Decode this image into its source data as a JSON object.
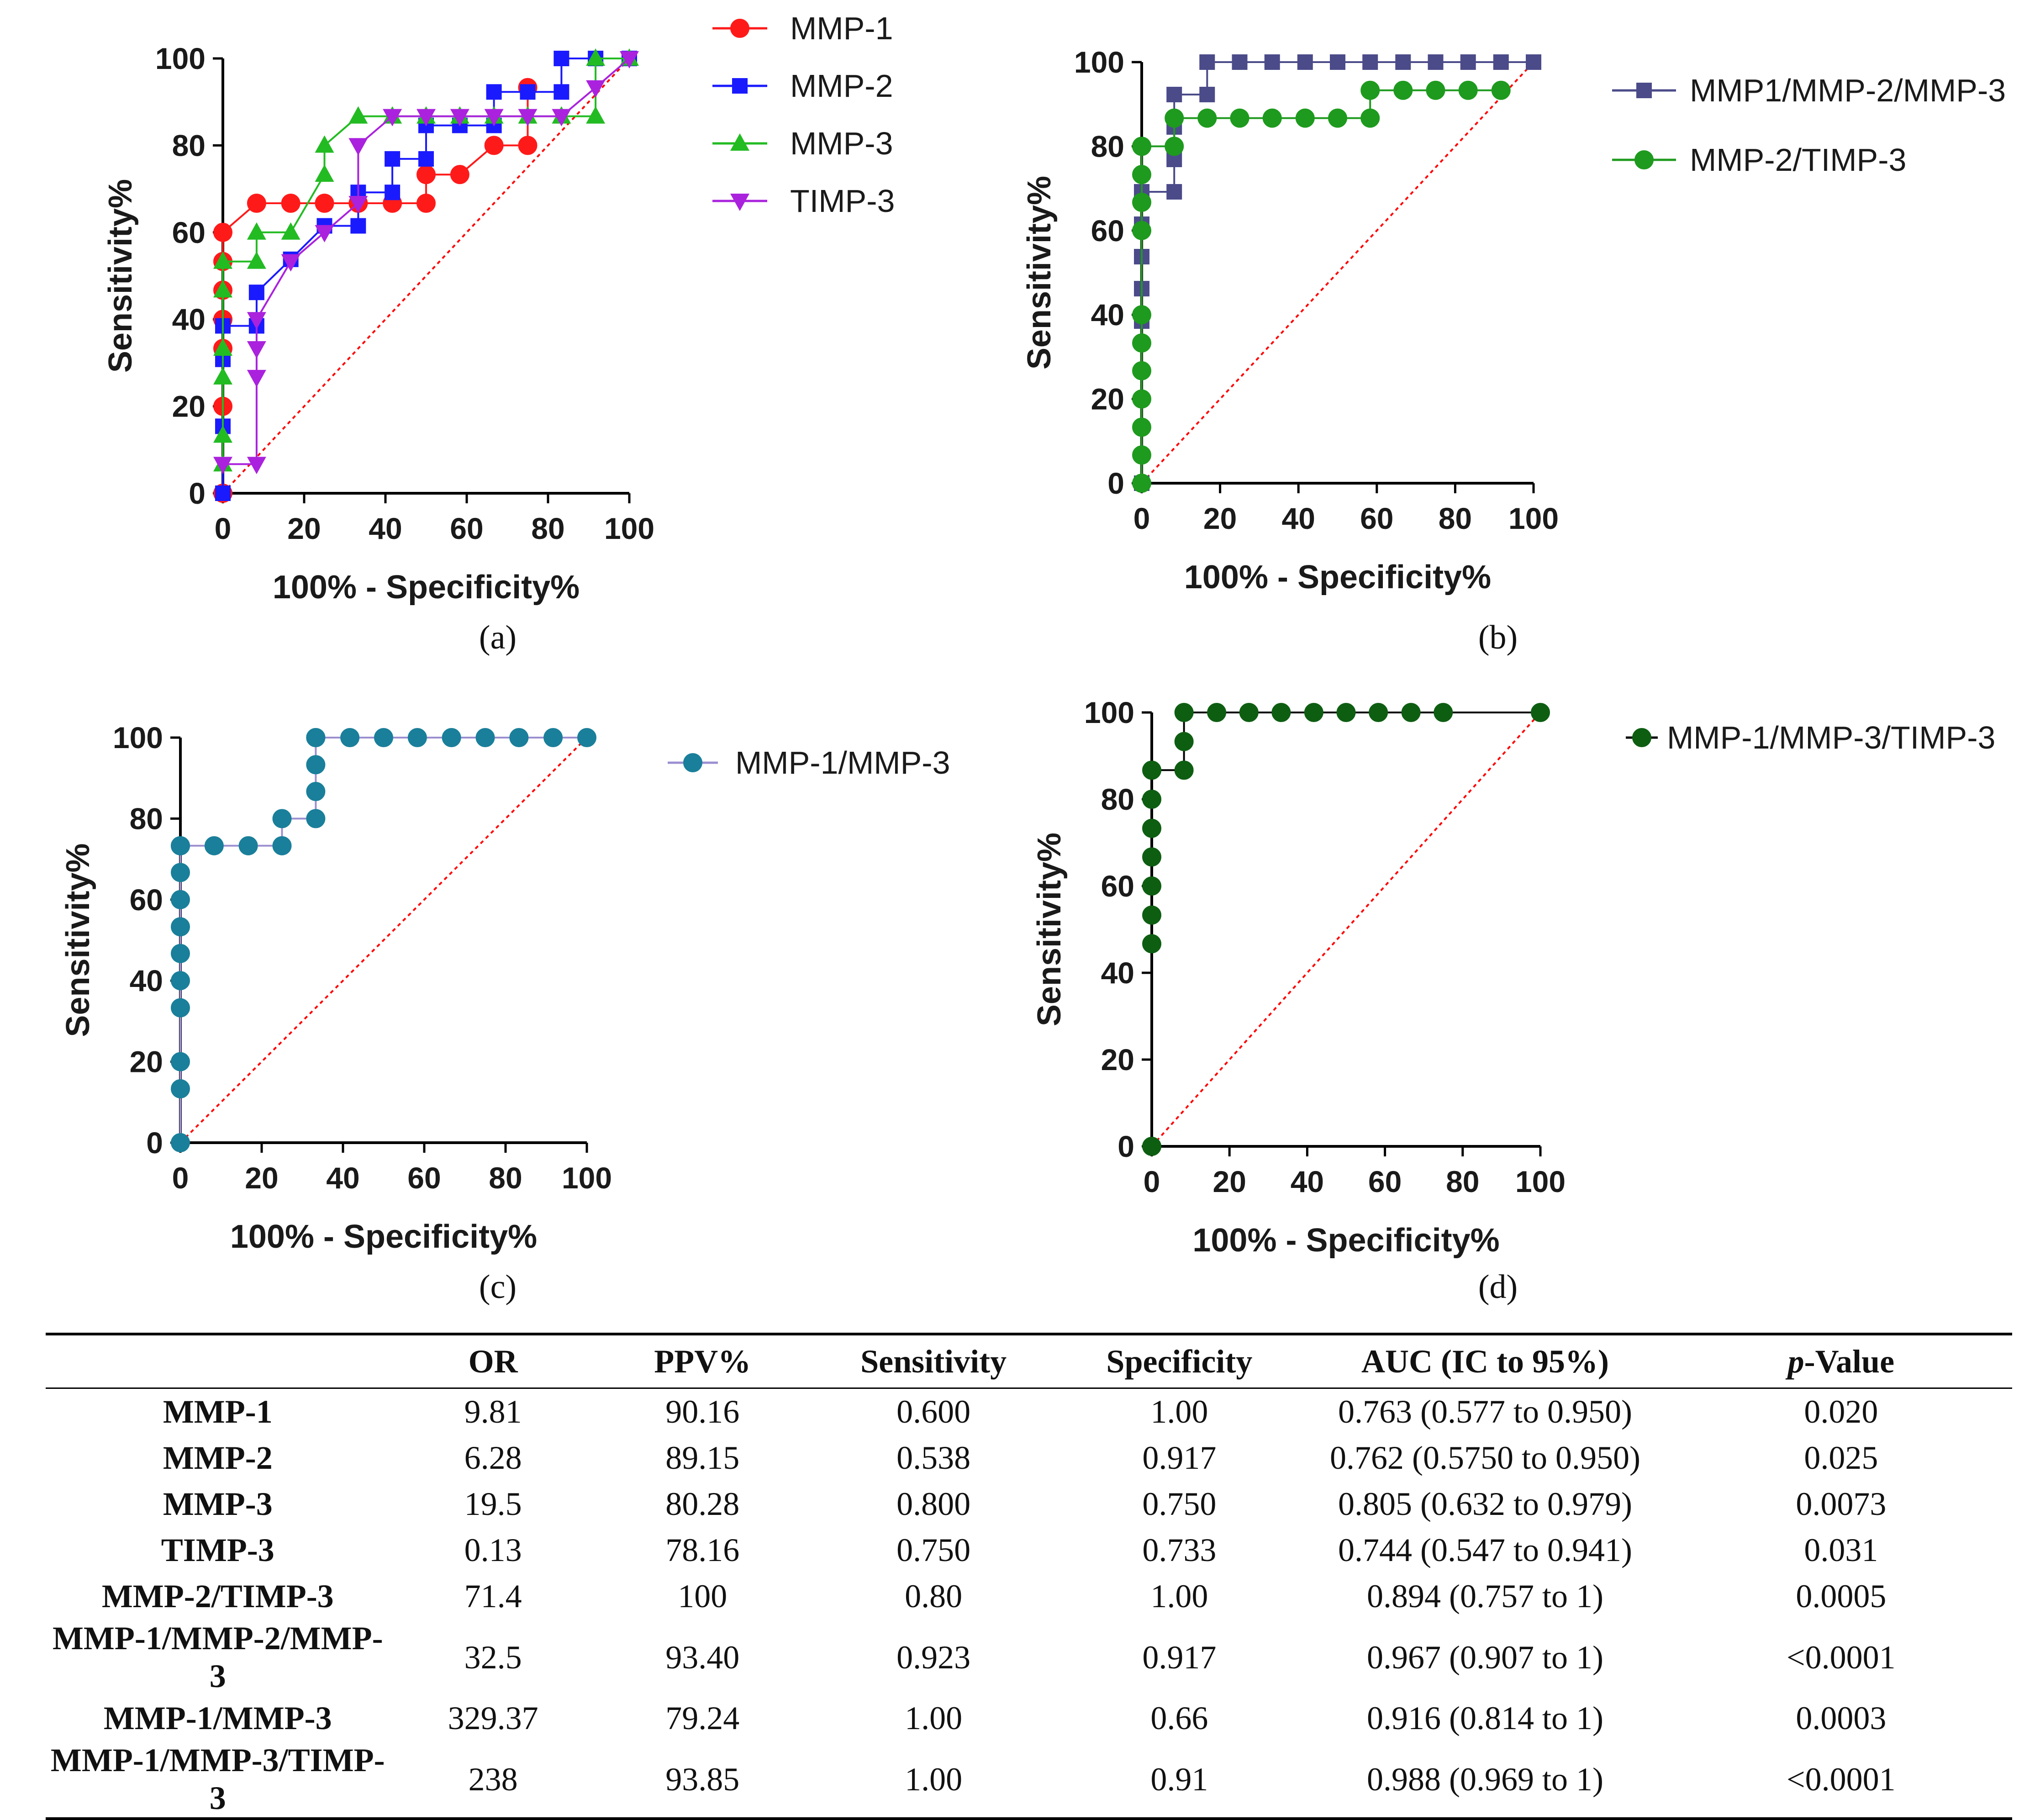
{
  "chart_data": [
    {
      "panel": "a",
      "panel_label": "(a)",
      "type": "line",
      "title": "",
      "xlabel": "100% - Specificity%",
      "ylabel": "Sensitivity%",
      "xlim": [
        0,
        100
      ],
      "ylim": [
        0,
        100
      ],
      "xticks": [
        0,
        20,
        40,
        60,
        80,
        100
      ],
      "yticks": [
        0,
        20,
        40,
        60,
        80,
        100
      ],
      "reference_line": {
        "x": [
          0,
          100
        ],
        "y": [
          0,
          100
        ],
        "color": "#ff0000",
        "style": "dotted"
      },
      "legend_position": "right",
      "series": [
        {
          "name": "MMP-1",
          "color": "#ff1a1a",
          "marker": "circle",
          "x": [
            0,
            0,
            0,
            0,
            0,
            0,
            0,
            8.3,
            16.7,
            25,
            33.3,
            41.7,
            50,
            50,
            58.3,
            66.7,
            75,
            75
          ],
          "y": [
            0,
            20,
            33.3,
            40,
            46.7,
            53.3,
            60,
            66.7,
            66.7,
            66.7,
            66.7,
            66.7,
            66.7,
            73.3,
            73.3,
            80,
            80,
            93.3
          ]
        },
        {
          "name": "MMP-2",
          "color": "#1a1aff",
          "marker": "square",
          "x": [
            0,
            0,
            0,
            0,
            8.3,
            8.3,
            16.7,
            25,
            33.3,
            33.3,
            41.7,
            41.7,
            50,
            50,
            58.3,
            66.7,
            66.7,
            75,
            83.3,
            83.3,
            91.7,
            100
          ],
          "y": [
            0,
            15.4,
            30.8,
            38.5,
            38.5,
            46.2,
            53.8,
            61.5,
            61.5,
            69.2,
            69.2,
            76.9,
            76.9,
            84.6,
            84.6,
            84.6,
            92.3,
            92.3,
            92.3,
            100,
            100,
            100
          ]
        },
        {
          "name": "MMP-3",
          "color": "#22bb22",
          "marker": "triangle-up",
          "x": [
            0,
            0,
            0,
            0,
            0,
            0,
            8.3,
            8.3,
            16.7,
            25,
            25,
            33.3,
            41.7,
            50,
            58.3,
            66.7,
            75,
            83.3,
            91.7,
            91.7,
            100
          ],
          "y": [
            6.7,
            13.3,
            26.7,
            33.3,
            46.7,
            53.3,
            53.3,
            60,
            60,
            73.3,
            80,
            86.7,
            86.7,
            86.7,
            86.7,
            86.7,
            86.7,
            86.7,
            86.7,
            100,
            100
          ]
        },
        {
          "name": "TIMP-3",
          "color": "#aa22dd",
          "marker": "triangle-down",
          "x": [
            0,
            8.3,
            8.3,
            8.3,
            8.3,
            16.7,
            25,
            33.3,
            33.3,
            41.7,
            50,
            58.3,
            66.7,
            75,
            83.3,
            91.7,
            100
          ],
          "y": [
            6.7,
            6.7,
            26.7,
            33.3,
            40,
            53.3,
            60,
            66.7,
            80,
            86.7,
            86.7,
            86.7,
            86.7,
            86.7,
            86.7,
            93.3,
            100
          ]
        }
      ]
    },
    {
      "panel": "b",
      "panel_label": "(b)",
      "type": "line",
      "title": "",
      "xlabel": "100% - Specificity%",
      "ylabel": "Sensitivity%",
      "xlim": [
        0,
        100
      ],
      "ylim": [
        0,
        100
      ],
      "xticks": [
        0,
        20,
        40,
        60,
        80,
        100
      ],
      "yticks": [
        0,
        20,
        40,
        60,
        80,
        100
      ],
      "reference_line": {
        "x": [
          0,
          100
        ],
        "y": [
          0,
          100
        ],
        "color": "#ff0000",
        "style": "dotted"
      },
      "legend_position": "right",
      "series": [
        {
          "name": "MMP1/MMP-2/MMP-3",
          "color": "#4b4b8a",
          "marker": "square",
          "x": [
            0,
            0,
            0,
            0,
            0,
            0,
            8.3,
            8.3,
            8.3,
            8.3,
            16.7,
            16.7,
            25,
            33.3,
            41.7,
            50,
            58.3,
            66.7,
            75,
            83.3,
            91.7,
            100
          ],
          "y": [
            0,
            38.5,
            46.2,
            53.8,
            61.5,
            69.2,
            69.2,
            76.9,
            84.6,
            92.3,
            92.3,
            100,
            100,
            100,
            100,
            100,
            100,
            100,
            100,
            100,
            100,
            100
          ]
        },
        {
          "name": "MMP-2/TIMP-3",
          "color": "#1e9a1e",
          "marker": "circle",
          "x": [
            0,
            0,
            0,
            0,
            0,
            0,
            0,
            0,
            0,
            0,
            0,
            0,
            8.3,
            8.3,
            16.7,
            25,
            33.3,
            41.7,
            50,
            58.3,
            58.3,
            66.7,
            75,
            83.3,
            91.7
          ],
          "y": [
            0,
            6.7,
            13.3,
            20,
            26.7,
            33.3,
            40,
            60,
            66.7,
            73.3,
            80,
            80,
            80,
            86.7,
            86.7,
            86.7,
            86.7,
            86.7,
            86.7,
            86.7,
            93.3,
            93.3,
            93.3,
            93.3,
            93.3
          ]
        }
      ]
    },
    {
      "panel": "c",
      "panel_label": "(c)",
      "type": "line",
      "title": "",
      "xlabel": "100% - Specificity%",
      "ylabel": "Sensitivity%",
      "xlim": [
        0,
        100
      ],
      "ylim": [
        0,
        100
      ],
      "xticks": [
        0,
        20,
        40,
        60,
        80,
        100
      ],
      "yticks": [
        0,
        20,
        40,
        60,
        80,
        100
      ],
      "reference_line": {
        "x": [
          0,
          100
        ],
        "y": [
          0,
          100
        ],
        "color": "#ff0000",
        "style": "dotted"
      },
      "legend_position": "right",
      "series": [
        {
          "name": "MMP-1/MMP-3",
          "color": "#1a7f9a",
          "line_color": "#9b8fd0",
          "marker": "circle",
          "x": [
            0,
            0,
            0,
            0,
            0,
            0,
            0,
            0,
            0,
            0,
            0,
            8.3,
            16.7,
            25,
            25,
            33.3,
            33.3,
            33.3,
            33.3,
            33.3,
            41.7,
            50,
            58.3,
            66.7,
            75,
            83.3,
            91.7,
            100
          ],
          "y": [
            0,
            13.3,
            20,
            33.3,
            40,
            46.7,
            53.3,
            60,
            66.7,
            73.3,
            73.3,
            73.3,
            73.3,
            73.3,
            80,
            80,
            86.7,
            93.3,
            100,
            100,
            100,
            100,
            100,
            100,
            100,
            100,
            100,
            100
          ]
        }
      ]
    },
    {
      "panel": "d",
      "panel_label": "(d)",
      "type": "line",
      "title": "",
      "xlabel": "100% - Specificity%",
      "ylabel": "Sensitivity%",
      "xlim": [
        0,
        100
      ],
      "ylim": [
        0,
        100
      ],
      "xticks": [
        0,
        20,
        40,
        60,
        80,
        100
      ],
      "yticks": [
        0,
        20,
        40,
        60,
        80,
        100
      ],
      "reference_line": {
        "x": [
          0,
          100
        ],
        "y": [
          0,
          100
        ],
        "color": "#ff0000",
        "style": "dotted"
      },
      "legend_position": "right",
      "series": [
        {
          "name": "MMP-1/MMP-3/TIMP-3",
          "color": "#0e5e12",
          "line_color": "#000000",
          "marker": "circle",
          "x": [
            0,
            0,
            0,
            0,
            0,
            0,
            0,
            0,
            8.3,
            8.3,
            8.3,
            16.7,
            25,
            33.3,
            41.7,
            50,
            58.3,
            66.7,
            75,
            100
          ],
          "y": [
            0,
            46.7,
            53.3,
            60,
            66.7,
            73.3,
            80,
            86.7,
            86.7,
            93.3,
            100,
            100,
            100,
            100,
            100,
            100,
            100,
            100,
            100,
            100
          ]
        }
      ]
    },
    {
      "type": "table",
      "columns": [
        "",
        "OR",
        "PPV%",
        "Sensitivity",
        "Specificity",
        "AUC (IC to 95%)",
        "p-Value"
      ],
      "rows": [
        [
          "MMP-1",
          "9.81",
          "90.16",
          "0.600",
          "1.00",
          "0.763 (0.577 to 0.950)",
          "0.020"
        ],
        [
          "MMP-2",
          "6.28",
          "89.15",
          "0.538",
          "0.917",
          "0.762 (0.5750 to 0.950)",
          "0.025"
        ],
        [
          "MMP-3",
          "19.5",
          "80.28",
          "0.800",
          "0.750",
          "0.805 (0.632 to 0.979)",
          "0.0073"
        ],
        [
          "TIMP-3",
          "0.13",
          "78.16",
          "0.750",
          "0.733",
          "0.744 (0.547 to 0.941)",
          "0.031"
        ],
        [
          "MMP-2/TIMP-3",
          "71.4",
          "100",
          "0.80",
          "1.00",
          "0.894 (0.757 to 1)",
          "0.0005"
        ],
        [
          "MMP-1/MMP-2/MMP-3",
          "32.5",
          "93.40",
          "0.923",
          "0.917",
          "0.967 (0.907 to 1)",
          "<0.0001"
        ],
        [
          "MMP-1/MMP-3",
          "329.37",
          "79.24",
          "1.00",
          "0.66",
          "0.916 (0.814 to 1)",
          "0.0003"
        ],
        [
          "MMP-1/MMP-3/TIMP-3",
          "238",
          "93.85",
          "1.00",
          "0.91",
          "0.988 (0.969 to 1)",
          "<0.0001"
        ]
      ]
    }
  ],
  "table": {
    "headers": {
      "or": "OR",
      "ppv": "PPV%",
      "sensitivity": "Sensitivity",
      "specificity": "Specificity",
      "auc": "AUC (IC to 95%)",
      "pvalue_italic": "p",
      "pvalue_rest": "-Value"
    },
    "rows": [
      {
        "name": "MMP-1",
        "or": "9.81",
        "ppv": "90.16",
        "sens": "0.600",
        "spec": "1.00",
        "auc": "0.763 (0.577 to 0.950)",
        "p": "0.020"
      },
      {
        "name": "MMP-2",
        "or": "6.28",
        "ppv": "89.15",
        "sens": "0.538",
        "spec": "0.917",
        "auc": "0.762 (0.5750 to 0.950)",
        "p": "0.025"
      },
      {
        "name": "MMP-3",
        "or": "19.5",
        "ppv": "80.28",
        "sens": "0.800",
        "spec": "0.750",
        "auc": "0.805 (0.632 to 0.979)",
        "p": "0.0073"
      },
      {
        "name": "TIMP-3",
        "or": "0.13",
        "ppv": "78.16",
        "sens": "0.750",
        "spec": "0.733",
        "auc": "0.744 (0.547 to 0.941)",
        "p": "0.031"
      },
      {
        "name": "MMP-2/TIMP-3",
        "or": "71.4",
        "ppv": "100",
        "sens": "0.80",
        "spec": "1.00",
        "auc": "0.894 (0.757 to 1)",
        "p": "0.0005"
      },
      {
        "name": "MMP-1/MMP-2/MMP-3",
        "or": "32.5",
        "ppv": "93.40",
        "sens": "0.923",
        "spec": "0.917",
        "auc": "0.967 (0.907 to 1)",
        "p": "<0.0001"
      },
      {
        "name": "MMP-1/MMP-3",
        "or": "329.37",
        "ppv": "79.24",
        "sens": "1.00",
        "spec": "0.66",
        "auc": "0.916 (0.814 to 1)",
        "p": "0.0003"
      },
      {
        "name": "MMP-1/MMP-3/TIMP-3",
        "or": "238",
        "ppv": "93.85",
        "sens": "1.00",
        "spec": "0.91",
        "auc": "0.988 (0.969 to 1)",
        "p": "<0.0001"
      }
    ]
  }
}
